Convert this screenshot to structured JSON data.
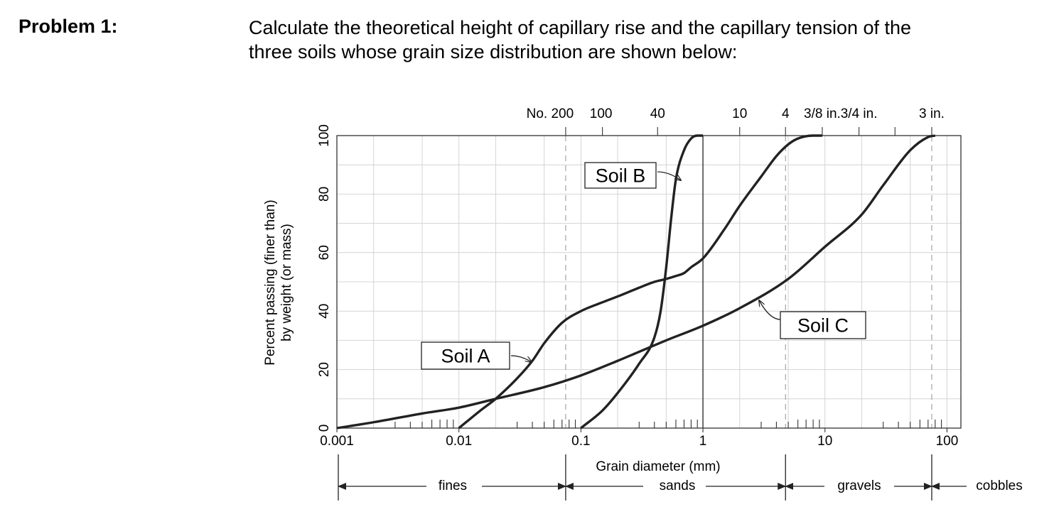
{
  "problem": {
    "label": "Problem 1:",
    "text_line1": "Calculate the theoretical height of capillary rise and the capillary tension of the",
    "text_line2": "three soils whose grain size distribution are shown below:"
  },
  "chart_data": {
    "type": "line",
    "title": "",
    "xlabel": "Grain diameter (mm)",
    "ylabel_line1": "Percent passing (finer than)",
    "ylabel_line2": "by weight (or mass)",
    "x_scale": "log",
    "xlim": [
      0.001,
      130
    ],
    "ylim": [
      0,
      100
    ],
    "x_tick_labels": [
      {
        "value": 0.001,
        "label": "0.001"
      },
      {
        "value": 0.01,
        "label": "0.01"
      },
      {
        "value": 0.1,
        "label": "0.1"
      },
      {
        "value": 1,
        "label": "1"
      },
      {
        "value": 10,
        "label": "10"
      },
      {
        "value": 100,
        "label": "100"
      }
    ],
    "y_ticks": [
      0,
      20,
      40,
      60,
      80,
      100
    ],
    "sieve_labels": [
      {
        "value": 0.075,
        "label": "No. 200"
      },
      {
        "value": 0.15,
        "label": "100"
      },
      {
        "value": 0.425,
        "label": "40"
      },
      {
        "value": 2.0,
        "label": "10"
      },
      {
        "value": 4.75,
        "label": "4"
      },
      {
        "value": 9.5,
        "label": "3/8 in."
      },
      {
        "value": 19,
        "label": "3/4 in."
      },
      {
        "value": 75,
        "label": "3 in."
      }
    ],
    "sieve_markers": [
      0.075,
      0.15,
      0.425,
      2.0,
      4.75,
      9.5,
      19,
      37.5,
      75
    ],
    "boundaries": [
      0.075,
      4.75,
      75
    ],
    "solid_vline": 1.0,
    "series": [
      {
        "name": "Soil A",
        "x": [
          0.01,
          0.015,
          0.02,
          0.03,
          0.04,
          0.05,
          0.07,
          0.1,
          0.15,
          0.2,
          0.3,
          0.4,
          0.5,
          0.6,
          0.7,
          0.8,
          1.0,
          1.5,
          2.0,
          3.0,
          4.0,
          5.0,
          6.0,
          8.0,
          9.5
        ],
        "values": [
          0,
          6,
          10,
          17,
          23,
          29,
          36,
          40,
          43,
          45,
          48,
          50,
          51,
          52,
          53,
          55,
          58,
          68,
          76,
          86,
          93,
          97,
          99,
          100,
          100
        ]
      },
      {
        "name": "Soil B",
        "x": [
          0.1,
          0.15,
          0.2,
          0.3,
          0.4,
          0.45,
          0.5,
          0.55,
          0.6,
          0.7,
          0.8,
          0.9,
          1.0
        ],
        "values": [
          0,
          6,
          12,
          22,
          31,
          40,
          55,
          72,
          85,
          95,
          99,
          100,
          100
        ]
      },
      {
        "name": "Soil C",
        "x": [
          0.001,
          0.002,
          0.005,
          0.01,
          0.02,
          0.05,
          0.1,
          0.2,
          0.5,
          1.0,
          2.0,
          5.0,
          10,
          20,
          30,
          50,
          70,
          80
        ],
        "values": [
          0,
          2,
          5,
          7,
          10,
          14,
          18,
          23,
          30,
          35,
          41,
          51,
          62,
          73,
          83,
          95,
          99.5,
          100
        ]
      }
    ],
    "annotations": [
      {
        "label": "Soil A",
        "series": "Soil A"
      },
      {
        "label": "Soil B",
        "series": "Soil B"
      },
      {
        "label": "Soil C",
        "series": "Soil C"
      }
    ],
    "classification": {
      "fines": "fines",
      "sands": "sands",
      "gravels": "gravels",
      "cobbles": "cobbles"
    }
  }
}
